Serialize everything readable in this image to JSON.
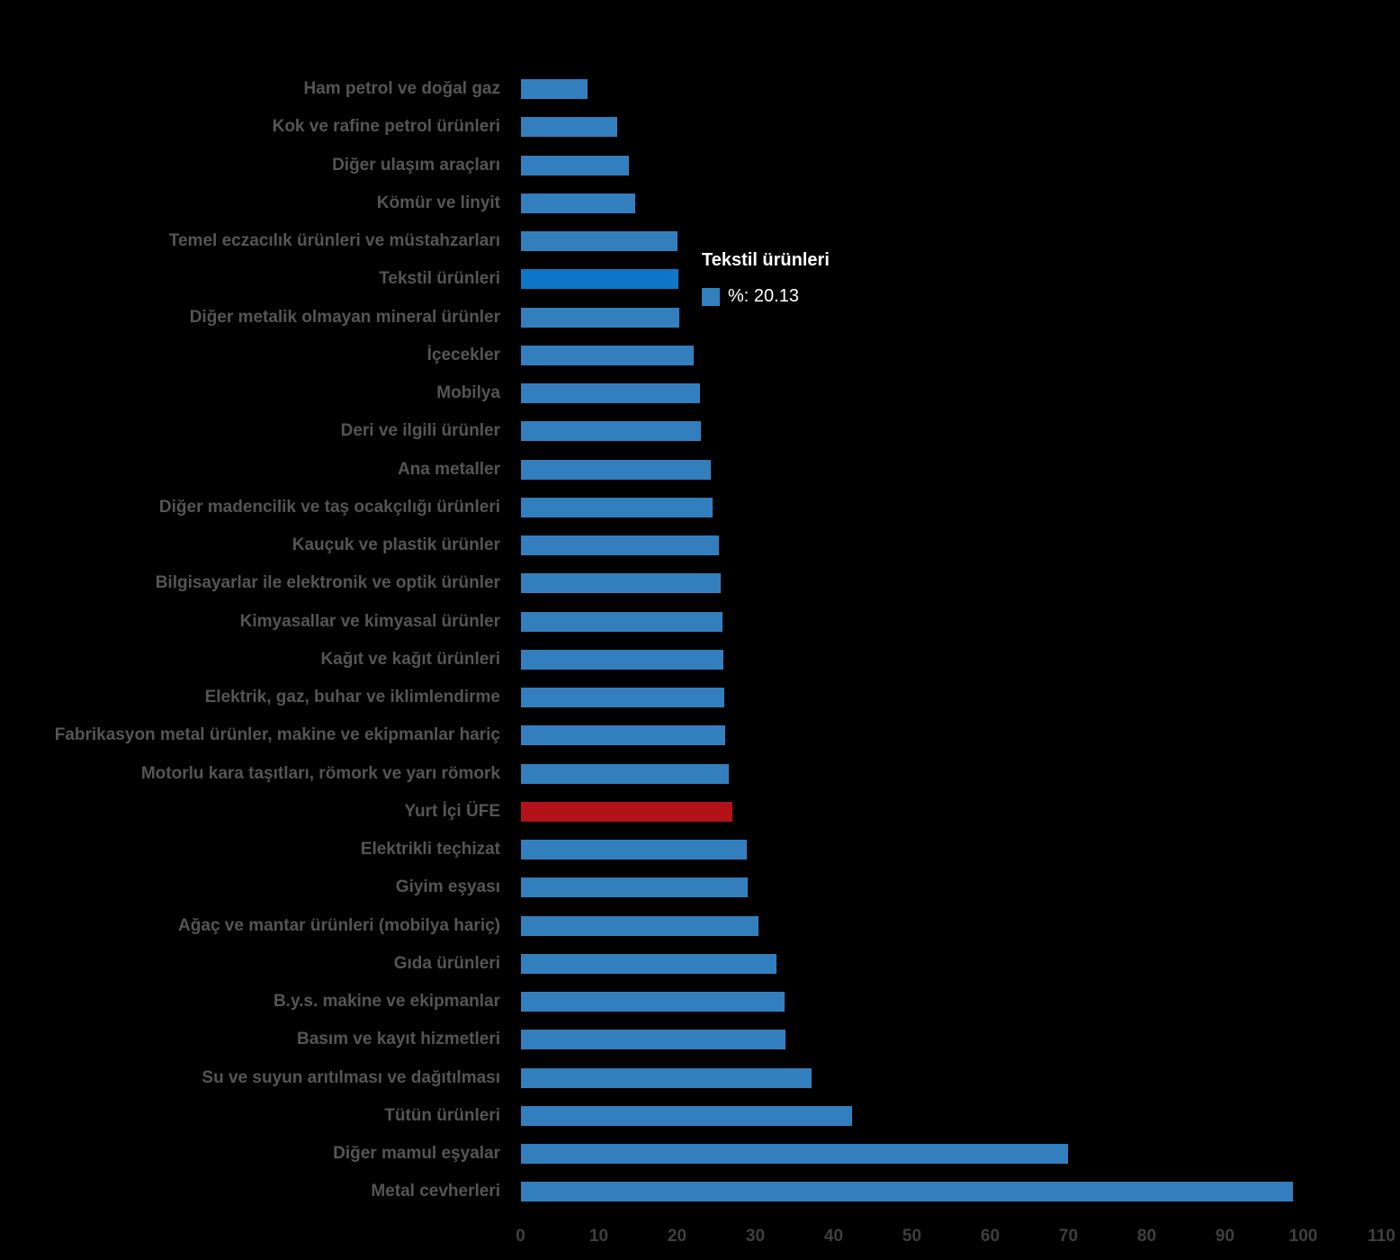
{
  "colors": {
    "background": "#000000",
    "bar_normal": "#337FBE",
    "bar_highlight": "#0E76C8",
    "bar_emphasis": "#B11318",
    "category_label": "#555555",
    "tick_label": "#3f3f3f",
    "tooltip_text": "#ffffff"
  },
  "tooltip": {
    "title": "Tekstil ürünleri",
    "value_label": "%: 20.13",
    "swatch_color": "#337FBE"
  },
  "chart_data": {
    "type": "bar",
    "orientation": "horizontal",
    "title": "",
    "xlabel": "",
    "ylabel": "",
    "xlim": [
      0,
      110
    ],
    "x_ticks": [
      0,
      10,
      20,
      30,
      40,
      50,
      60,
      70,
      80,
      90,
      100,
      110
    ],
    "grid": false,
    "legend_position": "none",
    "categories": [
      "Ham petrol ve doğal gaz",
      "Kok ve rafine petrol ürünleri",
      "Diğer ulaşım araçları",
      "Kömür ve linyit",
      "Temel eczacılık ürünleri ve müstahzarları",
      "Tekstil ürünleri",
      "Diğer metalik olmayan mineral ürünler",
      "İçecekler",
      "Mobilya",
      "Deri ve ilgili ürünler",
      "Ana metaller",
      "Diğer madencilik ve taş ocakçılığı ürünleri",
      "Kauçuk ve plastik ürünler",
      "Bilgisayarlar ile elektronik ve optik ürünler",
      "Kimyasallar ve kimyasal ürünler",
      "Kağıt ve kağıt ürünleri",
      "Elektrik, gaz, buhar ve iklimlendirme",
      "Fabrikasyon metal ürünler, makine ve ekipmanlar hariç",
      "Motorlu kara taşıtları, römork ve yarı römork",
      "Yurt İçi ÜFE",
      "Elektrikli teçhizat",
      "Giyim eşyası",
      "Ağaç ve mantar ürünleri (mobilya hariç)",
      "Gıda ürünleri",
      "B.y.s. makine ve ekipmanlar",
      "Basım ve kayıt hizmetleri",
      "Su ve suyun arıtılması ve dağıtılması",
      "Tütün ürünleri",
      "Diğer mamul eşyalar",
      "Metal cevherleri"
    ],
    "values": [
      8.6,
      12.3,
      13.9,
      14.6,
      20.1,
      20.13,
      20.3,
      22.1,
      22.9,
      23.1,
      24.3,
      24.5,
      25.4,
      25.6,
      25.8,
      25.9,
      26.0,
      26.2,
      26.6,
      27.09,
      28.9,
      29.0,
      30.4,
      32.7,
      33.7,
      33.9,
      37.2,
      42.4,
      69.9,
      98.7
    ],
    "highlighted_category": "Tekstil ürünleri",
    "highlighted_index": 5,
    "emphasis_category": "Yurt İçi ÜFE",
    "emphasis_index": 19
  }
}
